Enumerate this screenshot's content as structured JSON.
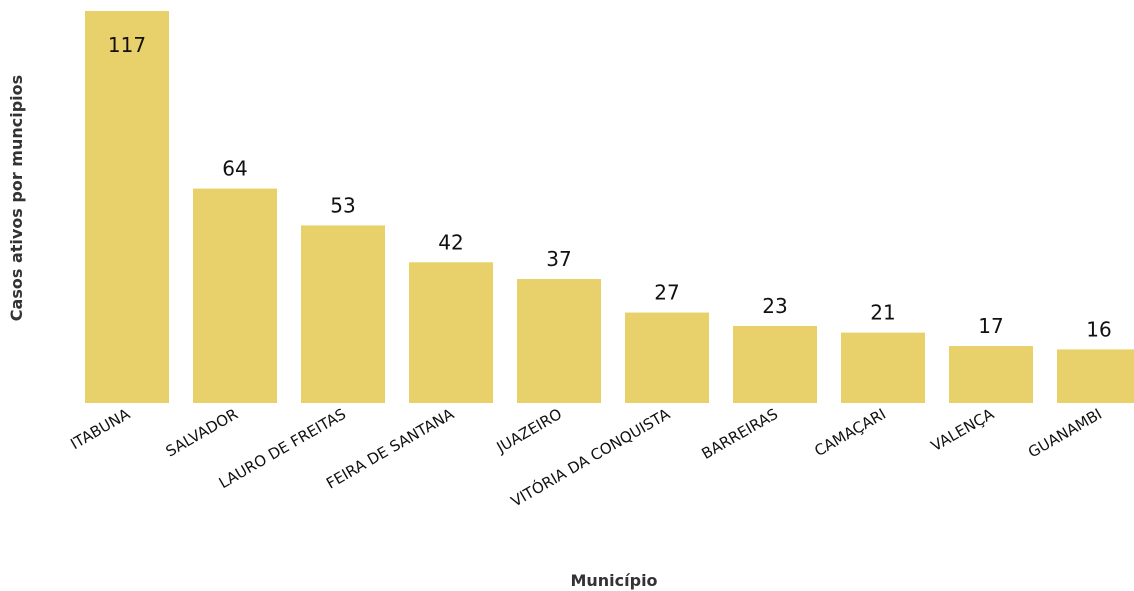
{
  "chart_data": {
    "type": "bar",
    "categories": [
      "ITABUNA",
      "SALVADOR",
      "LAURO DE FREITAS",
      "FEIRA DE SANTANA",
      "JUAZEIRO",
      "VITÓRIA DA CONQUISTA",
      "BARREIRAS",
      "CAMAÇARI",
      "VALENÇA",
      "GUANAMBI"
    ],
    "values": [
      117,
      64,
      53,
      42,
      37,
      27,
      23,
      21,
      17,
      16
    ],
    "data_labels": [
      "117",
      "64",
      "53",
      "42",
      "37",
      "27",
      "23",
      "21",
      "17",
      "16"
    ],
    "xlabel": "Município",
    "ylabel": "Casos ativos por muncipios",
    "ylim": [
      0,
      117
    ],
    "grid": false,
    "legend": "none",
    "bar_color": "#E8D16A"
  }
}
